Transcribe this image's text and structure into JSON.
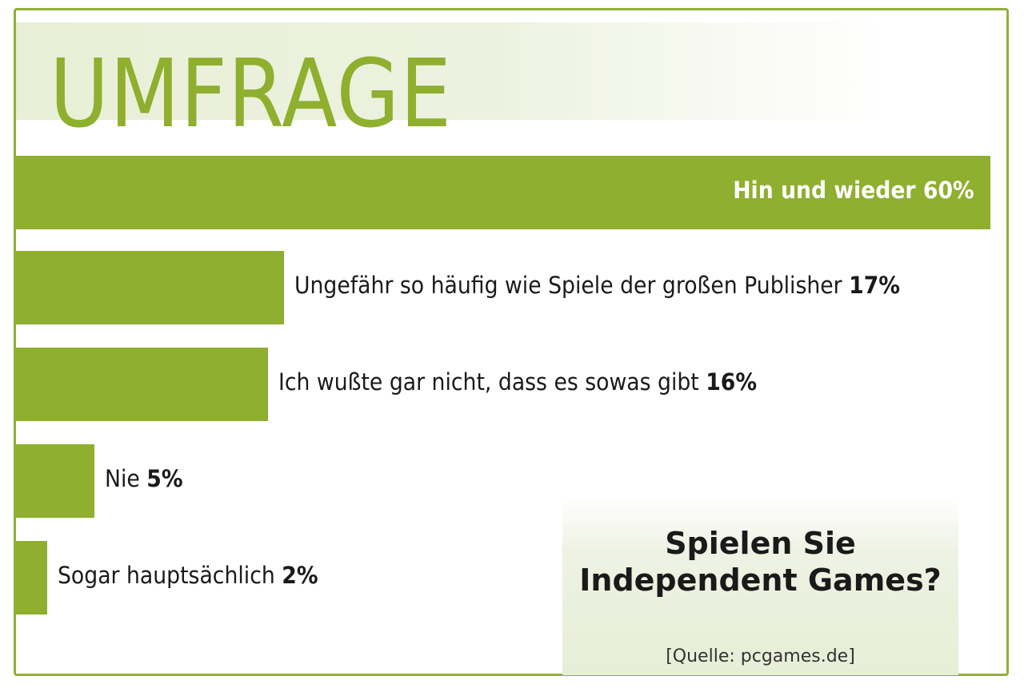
{
  "header": {
    "title": "UMFRAGE"
  },
  "colors": {
    "accent": "#8faf2e",
    "frame": "#8faf3a",
    "text": "#1a1a1a"
  },
  "question": {
    "line1": "Spielen Sie",
    "line2": "Independent Games?"
  },
  "source": "[Quelle: pcgames.de]",
  "chart_data": {
    "type": "bar",
    "orientation": "horizontal",
    "categories": [
      "Hin und wieder",
      "Ungefähr so häufig wie Spiele der großen Publisher",
      "Ich wußte gar nicht, dass es sowas gibt",
      "Nie",
      "Sogar hauptsächlich"
    ],
    "values": [
      60,
      17,
      16,
      5,
      2
    ],
    "value_labels": [
      "60%",
      "17%",
      "16%",
      "5%",
      "2%"
    ],
    "unit": "%",
    "title": "UMFRAGE",
    "xlim": [
      0,
      60
    ]
  }
}
